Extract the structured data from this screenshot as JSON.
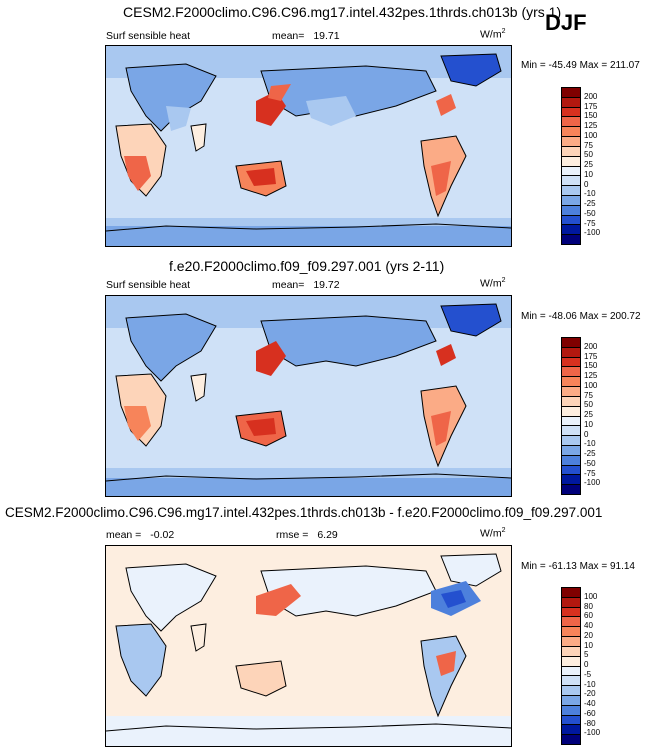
{
  "season": "DJF",
  "panels": [
    {
      "title": "CESM2.F2000climo.C96.C96.mg17.intel.432pes.1thrds.ch013b (yrs 1)",
      "left_label": "Surf sensible heat",
      "mid_label": "mean=",
      "mid_value": "19.71",
      "units": "W/m",
      "units_exp": "2",
      "min_label": "Min =",
      "min_value": "-45.49",
      "max_label": "Max =",
      "max_value": "211.07",
      "ticks": [
        "200",
        "175",
        "150",
        "125",
        "100",
        "75",
        "50",
        "25",
        "10",
        "0",
        "-10",
        "-25",
        "-50",
        "-75",
        "-100"
      ]
    },
    {
      "title": "f.e20.F2000climo.f09_f09.297.001 (yrs 2-11)",
      "left_label": "Surf sensible heat",
      "mid_label": "mean=",
      "mid_value": "19.72",
      "units": "W/m",
      "units_exp": "2",
      "min_label": "Min =",
      "min_value": "-48.06",
      "max_label": "Max =",
      "max_value": "200.72",
      "ticks": [
        "200",
        "175",
        "150",
        "125",
        "100",
        "75",
        "50",
        "25",
        "10",
        "0",
        "-10",
        "-25",
        "-50",
        "-75",
        "-100"
      ]
    },
    {
      "title": "CESM2.F2000climo.C96.C96.mg17.intel.432pes.1thrds.ch013b - f.e20.F2000climo.f09_f09.297.001",
      "left_label": "mean =",
      "left_value": "-0.02",
      "mid_label": "rmse =",
      "mid_value": "6.29",
      "units": "W/m",
      "units_exp": "2",
      "min_label": "Min =",
      "min_value": "-61.13",
      "max_label": "Max =",
      "max_value": "91.14",
      "ticks": [
        "100",
        "80",
        "60",
        "40",
        "20",
        "10",
        "5",
        "0",
        "-5",
        "-10",
        "-20",
        "-40",
        "-60",
        "-80",
        "-100"
      ]
    }
  ],
  "colors": {
    "scale": [
      "#7f0000",
      "#b2180f",
      "#d7301f",
      "#ef6548",
      "#f7845a",
      "#fbab86",
      "#fdd4b9",
      "#fdeee0",
      "#eaf2fc",
      "#cfe1f7",
      "#a9c8f0",
      "#7aa6e6",
      "#4d80dc",
      "#2450cf",
      "#00189e",
      "#00007a"
    ],
    "land": "#e8f0fb",
    "ocean": "#cfe1f7"
  }
}
